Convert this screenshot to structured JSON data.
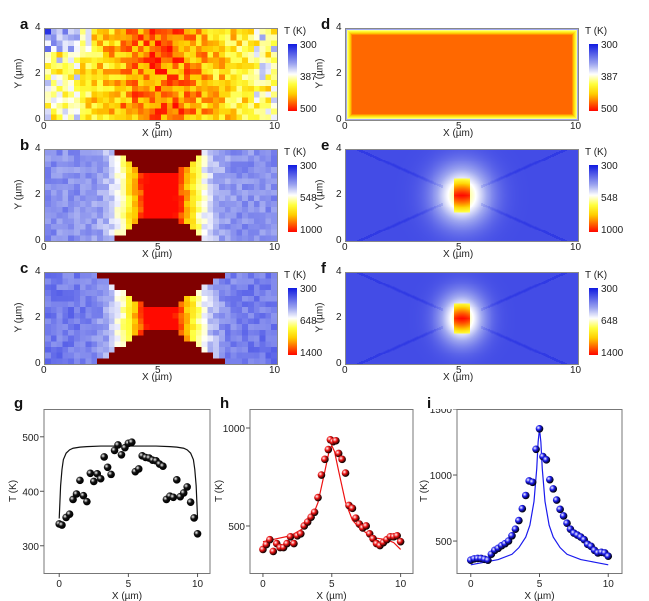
{
  "maps": [
    {
      "id": "a",
      "label": "a",
      "kind": "experiment-uniform",
      "cbar_title": "T (K)",
      "cbar_ticks": [
        "300",
        "387",
        "500"
      ]
    },
    {
      "id": "b",
      "label": "b",
      "kind": "experiment-bowtie",
      "cbar_title": "T (K)",
      "cbar_ticks": [
        "300",
        "548",
        "1000"
      ]
    },
    {
      "id": "c",
      "label": "c",
      "kind": "experiment-bowtie-wide",
      "cbar_title": "T (K)",
      "cbar_ticks": [
        "300",
        "648",
        "1400"
      ]
    },
    {
      "id": "d",
      "label": "d",
      "kind": "simulation-uniform",
      "cbar_title": "T (K)",
      "cbar_ticks": [
        "300",
        "387",
        "500"
      ]
    },
    {
      "id": "e",
      "label": "e",
      "kind": "simulation-bowtie",
      "cbar_title": "T (K)",
      "cbar_ticks": [
        "300",
        "548",
        "1000"
      ]
    },
    {
      "id": "f",
      "label": "f",
      "kind": "simulation-bowtie-wide",
      "cbar_title": "T (K)",
      "cbar_ticks": [
        "300",
        "648",
        "1400"
      ]
    }
  ],
  "map_axes": {
    "xlabel": "X (µm)",
    "ylabel": "Y (µm)",
    "xticks": [
      "0",
      "5",
      "10"
    ],
    "yticks": [
      "0",
      "2",
      "4"
    ]
  },
  "chart_data": [
    {
      "type": "scatter",
      "label": "g",
      "xlabel": "X (µm)",
      "ylabel": "T (K)",
      "xlim": [
        -1.1,
        10.9
      ],
      "ylim": [
        250,
        551
      ],
      "xticks": [
        0,
        5,
        10
      ],
      "yticks": [
        300,
        400,
        500
      ],
      "color": "#111111",
      "x": [
        0,
        0.2,
        0.5,
        0.75,
        1,
        1.25,
        1.5,
        1.75,
        2,
        2.25,
        2.5,
        2.75,
        3,
        3.25,
        3.5,
        3.75,
        4,
        4.25,
        4.5,
        4.75,
        5,
        5.25,
        5.5,
        5.75,
        6,
        6.25,
        6.5,
        6.75,
        7,
        7.25,
        7.5,
        7.75,
        8,
        8.25,
        8.5,
        8.75,
        9,
        9.25,
        9.5,
        9.75,
        10
      ],
      "y": [
        340,
        338,
        352,
        358,
        385,
        395,
        420,
        392,
        381,
        433,
        418,
        432,
        423,
        463,
        444,
        431,
        475,
        485,
        467,
        480,
        488,
        490,
        436,
        441,
        465,
        462,
        461,
        457,
        456,
        450,
        446,
        385,
        391,
        389,
        421,
        390,
        397,
        408,
        380,
        351,
        322
      ],
      "fit_x": [
        0,
        0.05,
        0.1,
        0.2,
        0.3,
        0.5,
        0.75,
        1,
        1.5,
        2,
        3,
        5,
        7,
        8,
        8.5,
        9,
        9.25,
        9.5,
        9.7,
        9.8,
        9.9,
        9.95,
        10
      ],
      "fit_y": [
        350,
        380,
        410,
        440,
        458,
        470,
        476,
        479,
        481,
        482,
        483,
        483,
        483,
        482,
        481,
        479,
        476,
        470,
        458,
        440,
        410,
        380,
        350
      ]
    },
    {
      "type": "scatter",
      "label": "h",
      "xlabel": "X (µm)",
      "ylabel": "T (K)",
      "xlim": [
        -0.94,
        10.9
      ],
      "ylim": [
        260,
        1097
      ],
      "xticks": [
        0,
        5,
        10
      ],
      "yticks": [
        500,
        1000
      ],
      "color": "#ee1111",
      "x": [
        0,
        0.25,
        0.5,
        0.75,
        1,
        1.25,
        1.5,
        1.75,
        2,
        2.25,
        2.5,
        2.75,
        3,
        3.25,
        3.5,
        3.75,
        4,
        4.25,
        4.5,
        4.75,
        4.9,
        5.1,
        5.3,
        5.5,
        5.75,
        6,
        6.25,
        6.5,
        6.75,
        7,
        7.25,
        7.5,
        7.75,
        8,
        8.25,
        8.5,
        8.75,
        9,
        9.25,
        9.5,
        9.75,
        10
      ],
      "y": [
        380,
        405,
        430,
        370,
        410,
        390,
        390,
        410,
        445,
        410,
        450,
        460,
        500,
        520,
        545,
        570,
        645,
        760,
        840,
        890,
        940,
        930,
        935,
        870,
        840,
        770,
        605,
        590,
        540,
        510,
        490,
        500,
        460,
        435,
        410,
        400,
        415,
        430,
        445,
        445,
        450,
        420
      ],
      "fit_x": [
        0,
        1,
        2,
        3,
        3.5,
        4,
        4.5,
        4.8,
        5,
        5.2,
        5.5,
        6,
        6.5,
        7,
        8,
        9,
        9.5,
        10
      ],
      "fit_y": [
        420,
        435,
        450,
        490,
        530,
        620,
        780,
        880,
        910,
        880,
        780,
        620,
        530,
        490,
        440,
        430,
        415,
        380
      ]
    },
    {
      "type": "scatter",
      "label": "i",
      "xlabel": "X (µm)",
      "ylabel": "T (K)",
      "xlim": [
        -1.0,
        11.0
      ],
      "ylim": [
        258,
        1500
      ],
      "xticks": [
        0,
        5,
        10
      ],
      "yticks": [
        500,
        1000,
        1500
      ],
      "color": "#1a1aee",
      "x": [
        0,
        0.25,
        0.5,
        0.75,
        1,
        1.25,
        1.5,
        1.75,
        2,
        2.25,
        2.5,
        2.75,
        3,
        3.25,
        3.5,
        3.75,
        4,
        4.25,
        4.5,
        4.75,
        5,
        5.25,
        5.5,
        5.75,
        6,
        6.25,
        6.5,
        6.75,
        7,
        7.25,
        7.5,
        7.75,
        8,
        8.25,
        8.5,
        8.75,
        9,
        9.25,
        9.5,
        9.75,
        10
      ],
      "y": [
        355,
        365,
        368,
        368,
        362,
        355,
        400,
        430,
        445,
        465,
        480,
        500,
        540,
        590,
        655,
        745,
        845,
        955,
        945,
        1195,
        1350,
        1140,
        1115,
        965,
        895,
        810,
        740,
        690,
        635,
        590,
        560,
        545,
        530,
        510,
        475,
        460,
        430,
        410,
        415,
        410,
        385
      ],
      "fit_x": [
        0,
        1,
        2,
        3,
        3.5,
        4,
        4.3,
        4.6,
        4.8,
        4.9,
        5,
        5.1,
        5.2,
        5.4,
        5.7,
        6,
        6.5,
        7,
        8,
        9,
        10
      ],
      "fit_y": [
        320,
        340,
        360,
        400,
        450,
        530,
        620,
        800,
        1050,
        1250,
        1350,
        1250,
        1050,
        800,
        620,
        530,
        450,
        400,
        360,
        340,
        320
      ]
    }
  ]
}
